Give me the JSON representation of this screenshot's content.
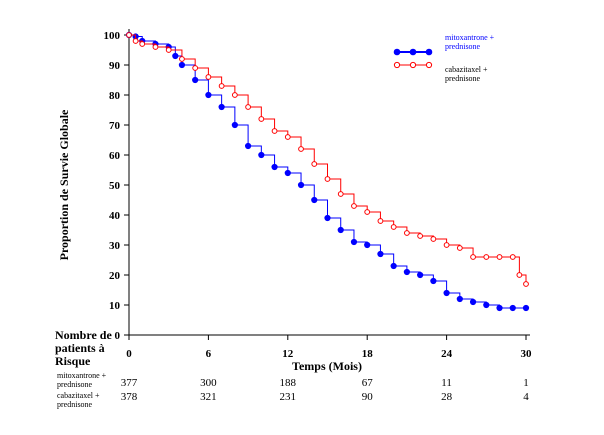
{
  "chart_data": {
    "type": "line",
    "xlabel": "Temps (Mois)",
    "ylabel": "Proportion de Survie Globale",
    "xlim": [
      0,
      30
    ],
    "ylim": [
      0,
      100
    ],
    "x_ticks": [
      0,
      6,
      12,
      18,
      24,
      30
    ],
    "y_ticks": [
      0,
      10,
      20,
      30,
      40,
      50,
      60,
      70,
      80,
      90,
      100
    ],
    "legend_position": "top-right",
    "series": [
      {
        "name": "mitoxantrone + prednisone",
        "color": "#0000ff",
        "marker": "filled-circle",
        "x": [
          0,
          0.5,
          1,
          2,
          3,
          3.5,
          4,
          5,
          6,
          7,
          8,
          9,
          10,
          11,
          12,
          13,
          14,
          15,
          16,
          17,
          18,
          19,
          20,
          21,
          22,
          23,
          24,
          25,
          26,
          27,
          28,
          29,
          30
        ],
        "y": [
          100,
          99.5,
          98,
          97,
          96,
          93,
          90,
          85,
          80,
          76,
          70,
          63,
          60,
          56,
          54,
          50,
          45,
          39,
          35,
          31,
          30,
          27,
          23,
          21,
          20,
          18,
          14,
          12,
          11,
          10,
          9,
          9,
          9
        ]
      },
      {
        "name": "cabazitaxel + prednisone",
        "color": "#ff0000",
        "marker": "open-circle",
        "x": [
          0,
          0.5,
          1,
          2,
          3,
          4,
          5,
          6,
          7,
          8,
          9,
          10,
          11,
          12,
          13,
          14,
          15,
          16,
          17,
          18,
          19,
          20,
          21,
          22,
          23,
          24,
          25,
          26,
          27,
          28,
          29,
          29.5,
          30
        ],
        "y": [
          100,
          98,
          97,
          96,
          95,
          92,
          89,
          86,
          83,
          80,
          76,
          72,
          68,
          66,
          62,
          57,
          52,
          47,
          43,
          41,
          38,
          36,
          34,
          33,
          32,
          30,
          29,
          26,
          26,
          26,
          26,
          20,
          17
        ]
      }
    ]
  },
  "risk_table": {
    "title_lines": [
      "Nombre de",
      "patients à",
      "Risque"
    ],
    "rows": [
      {
        "label_lines": [
          "mitoxantrone +",
          "prednisone"
        ],
        "values": [
          "377",
          "300",
          "188",
          "67",
          "11",
          "1"
        ]
      },
      {
        "label_lines": [
          "cabazitaxel +",
          "prednisone"
        ],
        "values": [
          "378",
          "321",
          "231",
          "90",
          "28",
          "4"
        ]
      }
    ]
  },
  "legend": {
    "entries": [
      {
        "label_lines": [
          "mitoxantrone +",
          "prednisone"
        ],
        "color": "#0000ff"
      },
      {
        "label_lines": [
          "cabazitaxel +",
          "prednisone"
        ],
        "color": "#ff0000"
      }
    ]
  }
}
